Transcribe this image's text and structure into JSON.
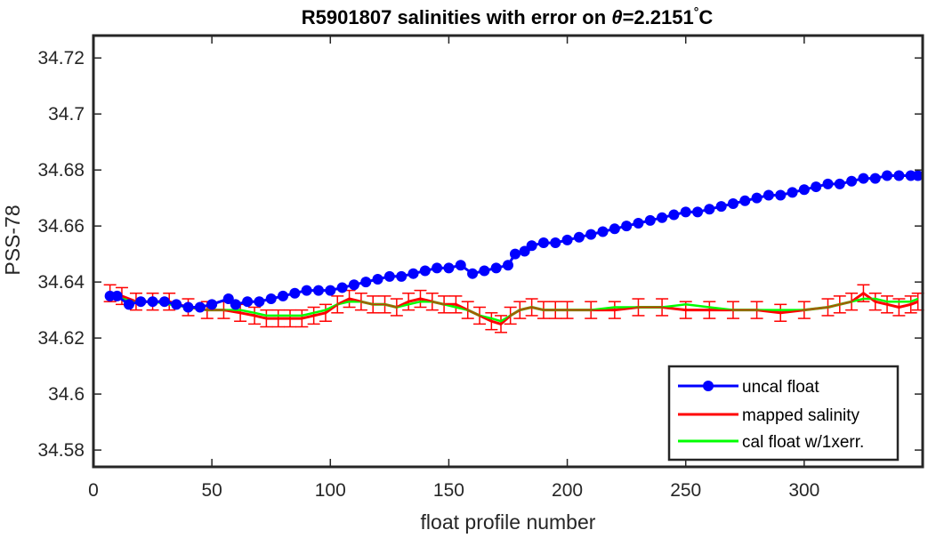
{
  "chart_data": {
    "type": "line",
    "title": "R5901807 salinities with error on θ=2.2151°C",
    "title_parts": {
      "prefix": "R5901807 salinities with error on ",
      "symbol": "θ",
      "value": "=2.2151",
      "degree": "°",
      "unit": "C"
    },
    "xlabel": "float profile number",
    "ylabel": "PSS-78",
    "xlim": [
      0,
      350
    ],
    "ylim": [
      34.574,
      34.728
    ],
    "x_ticks": [
      0,
      50,
      100,
      150,
      200,
      250,
      300
    ],
    "x_tick_labels": [
      "0",
      "50",
      "100",
      "150",
      "200",
      "250",
      "300"
    ],
    "y_ticks": [
      34.58,
      34.6,
      34.62,
      34.64,
      34.66,
      34.68,
      34.7,
      34.72
    ],
    "y_tick_labels": [
      "34.58",
      "34.6",
      "34.62",
      "34.64",
      "34.66",
      "34.68",
      "34.7",
      "34.72"
    ],
    "grid": false,
    "legend_position": "bottom-right",
    "colors": {
      "uncal": "#0000ff",
      "mapped": "#ff0000",
      "cal": "#00ff00"
    },
    "series": [
      {
        "name": "uncal float",
        "style": "line-with-dots",
        "x": [
          7,
          10,
          15,
          20,
          25,
          30,
          35,
          40,
          45,
          50,
          57,
          60,
          65,
          70,
          75,
          80,
          85,
          90,
          95,
          100,
          105,
          110,
          115,
          120,
          125,
          130,
          135,
          140,
          145,
          150,
          155,
          160,
          165,
          170,
          175,
          178,
          182,
          185,
          190,
          195,
          200,
          205,
          210,
          215,
          220,
          225,
          230,
          235,
          240,
          245,
          250,
          255,
          260,
          265,
          270,
          275,
          280,
          285,
          290,
          295,
          300,
          305,
          310,
          315,
          320,
          325,
          330,
          335,
          340,
          345,
          348
        ],
        "y": [
          34.635,
          34.635,
          34.632,
          34.633,
          34.633,
          34.633,
          34.632,
          34.631,
          34.631,
          34.632,
          34.634,
          34.632,
          34.633,
          34.633,
          34.634,
          34.635,
          34.636,
          34.637,
          34.637,
          34.637,
          34.638,
          34.639,
          34.64,
          34.641,
          34.642,
          34.642,
          34.643,
          34.644,
          34.645,
          34.645,
          34.646,
          34.643,
          34.644,
          34.645,
          34.646,
          34.65,
          34.651,
          34.653,
          34.654,
          34.654,
          34.655,
          34.656,
          34.657,
          34.658,
          34.659,
          34.66,
          34.661,
          34.662,
          34.663,
          34.664,
          34.665,
          34.665,
          34.666,
          34.667,
          34.668,
          34.669,
          34.67,
          34.671,
          34.671,
          34.672,
          34.673,
          34.674,
          34.675,
          34.675,
          34.676,
          34.677,
          34.677,
          34.678,
          34.678,
          34.678,
          34.678
        ]
      },
      {
        "name": "mapped salinity",
        "style": "line-with-errorbars",
        "x": [
          7,
          12,
          18,
          25,
          32,
          40,
          48,
          55,
          62,
          68,
          73,
          78,
          83,
          88,
          93,
          98,
          103,
          108,
          113,
          118,
          123,
          128,
          133,
          138,
          143,
          148,
          153,
          158,
          163,
          168,
          172,
          176,
          180,
          185,
          190,
          195,
          200,
          210,
          220,
          230,
          240,
          250,
          260,
          270,
          280,
          290,
          300,
          310,
          315,
          320,
          325,
          330,
          335,
          340,
          345,
          348
        ],
        "y": [
          34.636,
          34.635,
          34.633,
          34.633,
          34.633,
          34.631,
          34.63,
          34.63,
          34.629,
          34.628,
          34.627,
          34.627,
          34.627,
          34.627,
          34.628,
          34.629,
          34.632,
          34.634,
          34.633,
          34.632,
          34.632,
          34.631,
          34.633,
          34.634,
          34.633,
          34.632,
          34.632,
          34.63,
          34.628,
          34.626,
          34.625,
          34.628,
          34.63,
          34.631,
          34.63,
          34.63,
          34.63,
          34.63,
          34.63,
          34.631,
          34.631,
          34.63,
          34.63,
          34.63,
          34.63,
          34.629,
          34.63,
          34.631,
          34.632,
          34.633,
          34.636,
          34.633,
          34.632,
          34.631,
          34.632,
          34.633
        ],
        "err": 0.003
      },
      {
        "name": "cal float w/1xerr.",
        "style": "line",
        "x": [
          7,
          12,
          18,
          25,
          32,
          40,
          48,
          55,
          62,
          68,
          73,
          78,
          83,
          88,
          93,
          98,
          103,
          108,
          113,
          118,
          123,
          128,
          133,
          138,
          143,
          148,
          153,
          158,
          163,
          168,
          172,
          176,
          180,
          185,
          190,
          195,
          200,
          210,
          220,
          230,
          240,
          250,
          260,
          270,
          280,
          290,
          300,
          310,
          315,
          320,
          325,
          330,
          335,
          340,
          345,
          348
        ],
        "y": [
          34.635,
          34.634,
          34.633,
          34.633,
          34.632,
          34.631,
          34.63,
          34.63,
          34.63,
          34.629,
          34.628,
          34.628,
          34.628,
          34.628,
          34.629,
          34.63,
          34.632,
          34.633,
          34.633,
          34.632,
          34.632,
          34.631,
          34.632,
          34.633,
          34.633,
          34.632,
          34.631,
          34.63,
          34.628,
          34.627,
          34.626,
          34.628,
          34.63,
          34.631,
          34.63,
          34.63,
          34.63,
          34.63,
          34.631,
          34.631,
          34.631,
          34.632,
          34.631,
          34.63,
          34.63,
          34.63,
          34.63,
          34.631,
          34.632,
          34.633,
          34.634,
          34.634,
          34.633,
          34.633,
          34.633,
          34.634
        ]
      }
    ]
  }
}
